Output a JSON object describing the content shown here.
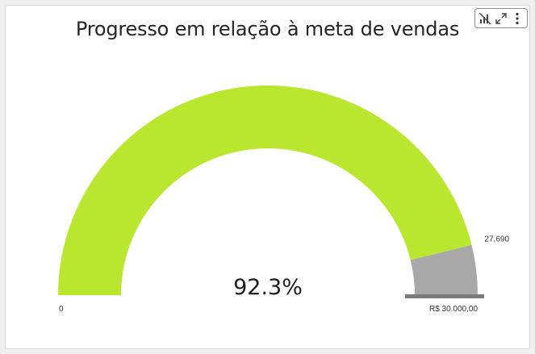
{
  "title": "Progresso em relação à meta de vendas",
  "toolbar": {
    "icons": [
      "chart-settings-icon",
      "expand-icon",
      "more-options-icon"
    ]
  },
  "chart_data": {
    "type": "gauge",
    "title": "Progresso em relação à meta de vendas",
    "min": 0,
    "max": 30000,
    "value": 27690,
    "percent_label": "92.3%",
    "value_label": "27,690",
    "min_label": "0",
    "max_label": "R$ 30.000,00",
    "colors": {
      "filled": "#b9e62e",
      "remaining": "#a8a8a8",
      "target_marker": "#7a7a7a"
    }
  }
}
